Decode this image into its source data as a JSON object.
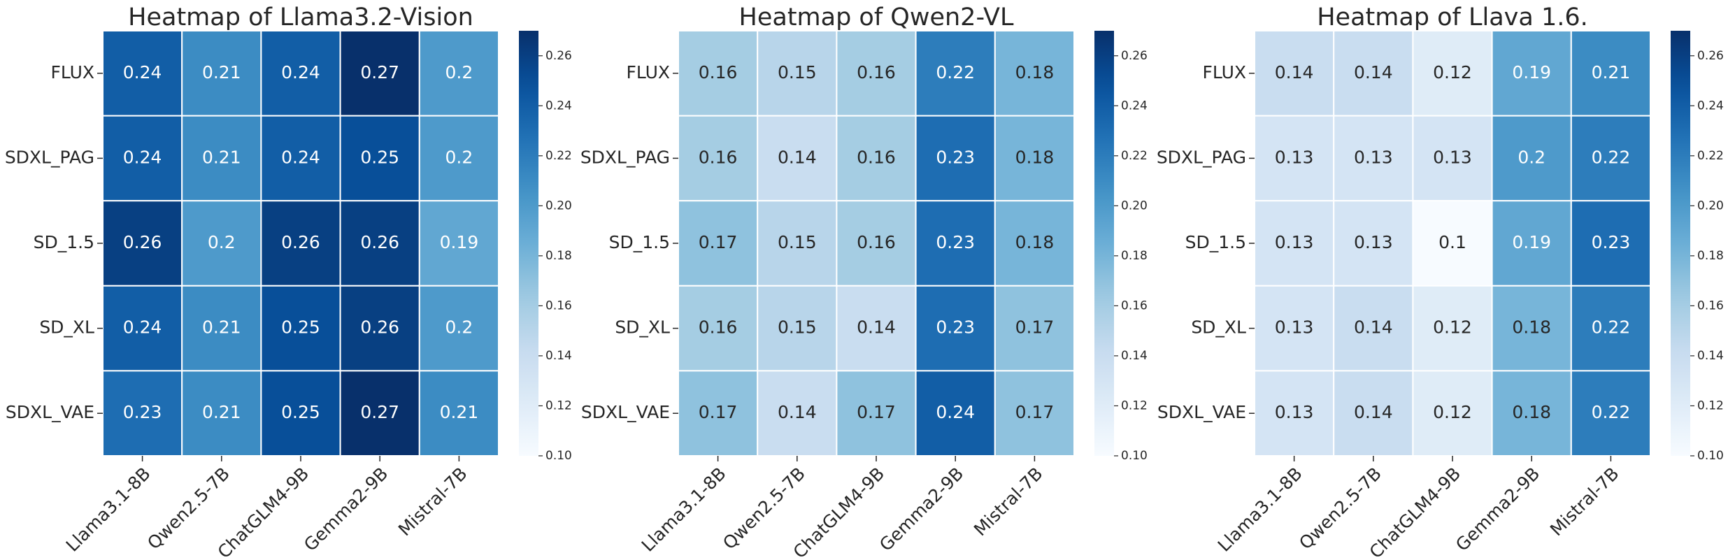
{
  "chart_data": [
    {
      "type": "heatmap",
      "title": "Heatmap of Llama3.2-Vision",
      "rows": [
        "FLUX",
        "SDXL_PAG",
        "SD_1.5",
        "SD_XL",
        "SDXL_VAE"
      ],
      "categories": [
        "Llama3.1-8B",
        "Qwen2.5-7B",
        "ChatGLM4-9B",
        "Gemma2-9B",
        "Mistral-7B"
      ],
      "values": [
        [
          0.24,
          0.21,
          0.24,
          0.27,
          0.2
        ],
        [
          0.24,
          0.21,
          0.24,
          0.25,
          0.2
        ],
        [
          0.26,
          0.2,
          0.26,
          0.26,
          0.19
        ],
        [
          0.24,
          0.21,
          0.25,
          0.26,
          0.2
        ],
        [
          0.23,
          0.21,
          0.25,
          0.27,
          0.21
        ]
      ],
      "colormap": "Blues",
      "clim": [
        0.1,
        0.27
      ],
      "cticks": [
        {
          "value": 0.1,
          "label": "0.10"
        },
        {
          "value": 0.12,
          "label": "0.12"
        },
        0.14,
        0.16,
        0.18,
        {
          "value": 0.2,
          "label": "0.20"
        },
        0.22,
        0.24,
        0.26
      ]
    },
    {
      "type": "heatmap",
      "title": "Heatmap of Qwen2-VL",
      "rows": [
        "FLUX",
        "SDXL_PAG",
        "SD_1.5",
        "SD_XL",
        "SDXL_VAE"
      ],
      "categories": [
        "Llama3.1-8B",
        "Qwen2.5-7B",
        "ChatGLM4-9B",
        "Gemma2-9B",
        "Mistral-7B"
      ],
      "values": [
        [
          0.16,
          0.15,
          0.16,
          0.22,
          0.18
        ],
        [
          0.16,
          0.14,
          0.16,
          0.23,
          0.18
        ],
        [
          0.17,
          0.15,
          0.16,
          0.23,
          0.18
        ],
        [
          0.16,
          0.15,
          0.14,
          0.23,
          0.17
        ],
        [
          0.17,
          0.14,
          0.17,
          0.24,
          0.17
        ]
      ],
      "colormap": "Blues",
      "clim": [
        0.1,
        0.27
      ],
      "cticks": [
        {
          "value": 0.1,
          "label": "0.10"
        },
        {
          "value": 0.12,
          "label": "0.12"
        },
        0.14,
        0.16,
        0.18,
        {
          "value": 0.2,
          "label": "0.20"
        },
        0.22,
        0.24,
        0.26
      ]
    },
    {
      "type": "heatmap",
      "title": "Heatmap of Llava 1.6.",
      "rows": [
        "FLUX",
        "SDXL_PAG",
        "SD_1.5",
        "SD_XL",
        "SDXL_VAE"
      ],
      "categories": [
        "Llama3.1-8B",
        "Qwen2.5-7B",
        "ChatGLM4-9B",
        "Gemma2-9B",
        "Mistral-7B"
      ],
      "values": [
        [
          0.14,
          0.14,
          0.12,
          0.19,
          0.21
        ],
        [
          0.13,
          0.13,
          0.13,
          0.2,
          0.22
        ],
        [
          0.13,
          0.13,
          0.1,
          0.19,
          0.23
        ],
        [
          0.13,
          0.14,
          0.12,
          0.18,
          0.22
        ],
        [
          0.13,
          0.14,
          0.12,
          0.18,
          0.22
        ]
      ],
      "colormap": "Blues",
      "clim": [
        0.1,
        0.27
      ],
      "cticks": [
        {
          "value": 0.1,
          "label": "0.10"
        },
        {
          "value": 0.12,
          "label": "0.12"
        },
        0.14,
        0.16,
        0.18,
        {
          "value": 0.2,
          "label": "0.20"
        },
        0.22,
        0.24,
        0.26
      ]
    }
  ]
}
